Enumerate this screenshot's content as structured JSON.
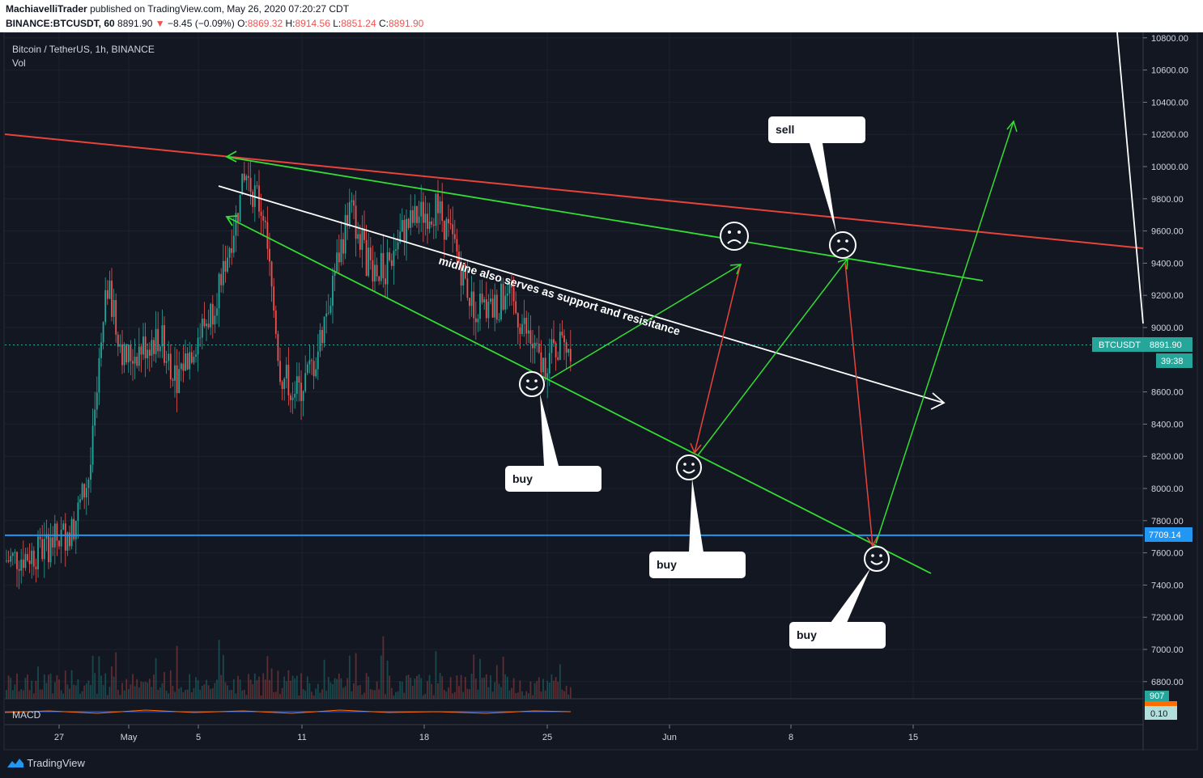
{
  "header": {
    "author": "MachiavelliTrader",
    "published": "published on TradingView.com, May 26, 2020 07:20:27 CDT",
    "symbol_line": "BINANCE:BTCUSDT, 60",
    "last": "8891.90",
    "change": "−8.45 (−0.09%)",
    "open_label": "O:",
    "open": "8869.32",
    "high_label": "H:",
    "high": "8914.56",
    "low_label": "L:",
    "low": "8851.24",
    "close_label": "C:",
    "close": "8891.90"
  },
  "legend": {
    "title": "Bitcoin / TetherUS, 1h, BINANCE",
    "vol": "Vol",
    "macd": "MACD"
  },
  "footer": {
    "brand": "TradingView"
  },
  "colors": {
    "bg": "#131722",
    "up": "#26a69a",
    "down": "#ef5350",
    "green_line": "#33dd33",
    "red_line": "#e8433a",
    "blue_line": "#2196f3",
    "tag": "#26a69a"
  },
  "chart_data": {
    "type": "candlestick",
    "symbol": "BTCUSDT",
    "price_axis": {
      "ticks": [
        10800,
        10600,
        10400,
        10200,
        10000,
        9800,
        9600,
        9400,
        9200,
        9000,
        8600,
        8400,
        8200,
        8000,
        7800,
        7600,
        7400,
        7200,
        7000,
        6800
      ],
      "labels": [
        "10800.00",
        "10600.00",
        "10400.00",
        "10200.00",
        "10000.00",
        "9800.00",
        "9600.00",
        "9400.00",
        "9200.00",
        "9000.00",
        "8600.00",
        "8400.00",
        "8200.00",
        "8000.00",
        "7800.00",
        "7600.00",
        "7400.00",
        "7200.00",
        "7000.00",
        "6800.00"
      ]
    },
    "time_axis": {
      "labels": [
        "27",
        "May",
        "5",
        "11",
        "18",
        "25",
        "Jun",
        "8",
        "15"
      ]
    },
    "last_price": {
      "label": "BTCUSDT",
      "value": "8891.90",
      "countdown": "39:38",
      "price": 8891.9
    },
    "support_line": {
      "value": "7709.14",
      "price": 7709.14
    },
    "volume_tag": "907",
    "macd_tag": "0.10",
    "price_path": [
      [
        "2020-04-24",
        7550
      ],
      [
        "2020-04-26",
        7600
      ],
      [
        "2020-04-28",
        7750
      ],
      [
        "2020-04-29",
        8100
      ],
      [
        "2020-04-30",
        9250
      ],
      [
        "2020-05-01",
        8800
      ],
      [
        "2020-05-03",
        8950
      ],
      [
        "2020-05-04",
        8700
      ],
      [
        "2020-05-05",
        8900
      ],
      [
        "2020-05-06",
        9100
      ],
      [
        "2020-05-07",
        9500
      ],
      [
        "2020-05-08",
        9950
      ],
      [
        "2020-05-09",
        9700
      ],
      [
        "2020-05-10",
        8700
      ],
      [
        "2020-05-11",
        8600
      ],
      [
        "2020-05-12",
        8800
      ],
      [
        "2020-05-13",
        9300
      ],
      [
        "2020-05-14",
        9750
      ],
      [
        "2020-05-15",
        9400
      ],
      [
        "2020-05-16",
        9350
      ],
      [
        "2020-05-17",
        9600
      ],
      [
        "2020-05-18",
        9700
      ],
      [
        "2020-05-19",
        9750
      ],
      [
        "2020-05-20",
        9500
      ],
      [
        "2020-05-21",
        9150
      ],
      [
        "2020-05-22",
        9100
      ],
      [
        "2020-05-23",
        9200
      ],
      [
        "2020-05-24",
        9000
      ],
      [
        "2020-05-25",
        8750
      ],
      [
        "2020-05-26",
        8892
      ]
    ],
    "annotations": [
      {
        "type": "text",
        "text": "midline also serves as support and resisitance"
      },
      {
        "type": "callout",
        "text": "buy"
      },
      {
        "type": "callout",
        "text": "buy"
      },
      {
        "type": "callout",
        "text": "buy"
      },
      {
        "type": "callout",
        "text": "sell"
      }
    ]
  }
}
